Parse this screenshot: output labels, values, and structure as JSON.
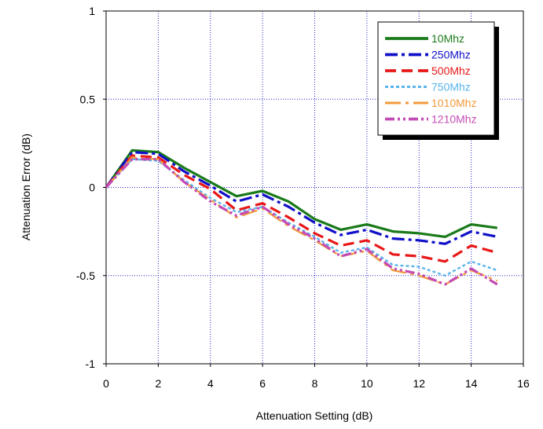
{
  "chart_data": {
    "type": "line",
    "title": "",
    "xlabel": "Attenuation Setting (dB)",
    "ylabel": "Attenuation Error (dB)",
    "xlim": [
      0,
      16
    ],
    "ylim": [
      -1,
      1
    ],
    "x_ticks": [
      0,
      2,
      4,
      6,
      8,
      10,
      12,
      14,
      16
    ],
    "y_ticks": [
      -1,
      -0.5,
      0,
      0.5,
      1
    ],
    "x_tick_labels": [
      "0",
      "2",
      "4",
      "6",
      "8",
      "10",
      "12",
      "14",
      "16"
    ],
    "y_tick_labels": [
      "-1",
      "-0.5",
      "0",
      "0.5",
      "1"
    ],
    "grid": "dotted",
    "legend_position": "top-right",
    "x": [
      0,
      1,
      2,
      3,
      4,
      5,
      6,
      7,
      8,
      9,
      10,
      11,
      12,
      13,
      14,
      15
    ],
    "series": [
      {
        "name": "10Mhz",
        "color": "#1a7a1a",
        "dash": "solid",
        "values": [
          0,
          0.21,
          0.2,
          0.11,
          0.03,
          -0.05,
          -0.02,
          -0.08,
          -0.18,
          -0.24,
          -0.21,
          -0.25,
          -0.26,
          -0.28,
          -0.21,
          -0.23
        ]
      },
      {
        "name": "250Mhz",
        "color": "#1010c8",
        "dash": "dashdot",
        "values": [
          0,
          0.2,
          0.19,
          0.09,
          0.01,
          -0.08,
          -0.04,
          -0.11,
          -0.2,
          -0.27,
          -0.24,
          -0.29,
          -0.3,
          -0.32,
          -0.25,
          -0.28
        ]
      },
      {
        "name": "500Mhz",
        "color": "#e81818",
        "dash": "dash",
        "values": [
          0,
          0.18,
          0.17,
          0.07,
          -0.01,
          -0.13,
          -0.09,
          -0.17,
          -0.26,
          -0.33,
          -0.3,
          -0.38,
          -0.39,
          -0.42,
          -0.33,
          -0.37
        ]
      },
      {
        "name": "750Mhz",
        "color": "#5ab4ec",
        "dash": "dot",
        "values": [
          0,
          0.16,
          0.15,
          0.04,
          -0.06,
          -0.14,
          -0.11,
          -0.2,
          -0.28,
          -0.37,
          -0.34,
          -0.44,
          -0.45,
          -0.5,
          -0.42,
          -0.47
        ]
      },
      {
        "name": "1010Mhz",
        "color": "#f39a3a",
        "dash": "longdashdot",
        "values": [
          0,
          0.17,
          0.16,
          0.03,
          -0.07,
          -0.17,
          -0.12,
          -0.22,
          -0.3,
          -0.39,
          -0.36,
          -0.47,
          -0.5,
          -0.55,
          -0.47,
          -0.53
        ]
      },
      {
        "name": "1210Mhz",
        "color": "#c34bb4",
        "dash": "dashdotdot",
        "values": [
          0,
          0.16,
          0.16,
          0.03,
          -0.08,
          -0.16,
          -0.11,
          -0.21,
          -0.29,
          -0.39,
          -0.35,
          -0.46,
          -0.49,
          -0.55,
          -0.46,
          -0.55
        ]
      }
    ]
  }
}
